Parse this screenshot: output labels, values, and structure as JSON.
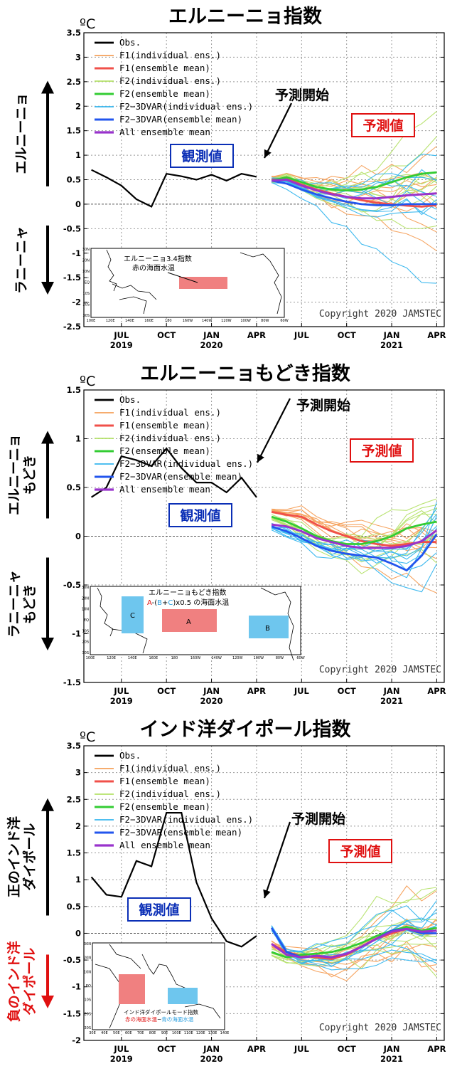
{
  "copyright": "Copyright 2020 JAMSTEC",
  "unit": "ºC",
  "legend": [
    {
      "name": "Obs.",
      "color": "#000000",
      "width": 2.2
    },
    {
      "name": "F1(individual ens.)",
      "color": "#f5a05a",
      "width": 1.2
    },
    {
      "name": "F1(ensemble mean)",
      "color": "#f0504a",
      "width": 2.4
    },
    {
      "name": "F2(individual ens.)",
      "color": "#b5e26a",
      "width": 1.2
    },
    {
      "name": "F2(ensemble mean)",
      "color": "#33cc33",
      "width": 2.4
    },
    {
      "name": "F2−3DVAR(individual ens.)",
      "color": "#36b6ee",
      "width": 1.2
    },
    {
      "name": "F2−3DVAR(ensemble mean)",
      "color": "#2255ee",
      "width": 2.4
    },
    {
      "name": "All ensemble mean",
      "color": "#9933cc",
      "width": 2.6
    }
  ],
  "x_ticks": [
    {
      "month": "JUL",
      "year": "2019"
    },
    {
      "month": "OCT",
      "year": ""
    },
    {
      "month": "JAN",
      "year": "2020"
    },
    {
      "month": "APR",
      "year": ""
    },
    {
      "month": "JUL",
      "year": ""
    },
    {
      "month": "OCT",
      "year": ""
    },
    {
      "month": "JAN",
      "year": "2021"
    },
    {
      "month": "APR",
      "year": ""
    }
  ],
  "chart_data": [
    {
      "type": "line",
      "title": "エルニーニョ指数",
      "ylim": [
        -2.5,
        3.5
      ],
      "yticks": [
        "3.5",
        "3",
        "2.5",
        "2",
        "1.5",
        "1",
        "0.5",
        "0",
        "-0.5",
        "-1",
        "-1.5",
        "-2",
        "-2.5"
      ],
      "forecast_start_label": "予測開始",
      "observed_label": "観測値",
      "forecast_label": "予測値",
      "up_label": "エルニーニョ",
      "down_label": "ラニーニャ",
      "obs": {
        "x": [
          "2019-05",
          "2019-06",
          "2019-07",
          "2019-08",
          "2019-09",
          "2019-10",
          "2019-11",
          "2019-12",
          "2020-01",
          "2020-02",
          "2020-03",
          "2020-04"
        ],
        "y": [
          0.7,
          0.55,
          0.38,
          0.1,
          -0.05,
          0.62,
          0.57,
          0.5,
          0.6,
          0.48,
          0.62,
          0.56
        ]
      },
      "forecast_x": [
        "2020-05",
        "2020-06",
        "2020-07",
        "2020-08",
        "2020-09",
        "2020-10",
        "2020-11",
        "2020-12",
        "2021-01",
        "2021-02",
        "2021-03",
        "2021-04"
      ],
      "f1_mean": [
        0.5,
        0.52,
        0.4,
        0.3,
        0.22,
        0.15,
        0.08,
        0.03,
        0.0,
        -0.03,
        -0.05,
        -0.02
      ],
      "f2_mean": [
        0.48,
        0.55,
        0.45,
        0.35,
        0.3,
        0.28,
        0.3,
        0.35,
        0.45,
        0.55,
        0.62,
        0.65
      ],
      "f2_3dvar_mean": [
        0.48,
        0.42,
        0.3,
        0.2,
        0.12,
        0.05,
        0.0,
        -0.02,
        -0.02,
        0.0,
        0.0,
        0.0
      ],
      "all_mean": [
        0.48,
        0.5,
        0.38,
        0.28,
        0.2,
        0.15,
        0.12,
        0.12,
        0.15,
        0.18,
        0.2,
        0.22
      ],
      "inset_title": "エルニーニョ3.4指数",
      "inset_subtitle": "赤の海面水温",
      "inset_lon_labels": [
        "100E",
        "120E",
        "140E",
        "160E",
        "180",
        "160W",
        "140W",
        "120W",
        "100W",
        "80W",
        "60W"
      ],
      "inset_lat_labels": [
        "30N",
        "20N",
        "10N",
        "EQ",
        "10S",
        "20S",
        "30S"
      ]
    },
    {
      "type": "line",
      "title": "エルニーニョもどき指数",
      "ylim": [
        -1.5,
        1.5
      ],
      "yticks": [
        "1.5",
        "1",
        "0.5",
        "0",
        "-0.5",
        "-1",
        "-1.5"
      ],
      "forecast_start_label": "予測開始",
      "observed_label": "観測値",
      "forecast_label": "予測値",
      "up_label": "エルニーニョ\nもどき",
      "down_label": "ラニーニャ\nもどき",
      "obs": {
        "x": [
          "2019-05",
          "2019-06",
          "2019-07",
          "2019-08",
          "2019-09",
          "2019-10",
          "2019-11",
          "2019-12",
          "2020-01",
          "2020-02",
          "2020-03",
          "2020-04"
        ],
        "y": [
          0.4,
          0.5,
          0.82,
          0.78,
          0.72,
          0.9,
          0.7,
          0.55,
          0.55,
          0.45,
          0.6,
          0.4
        ]
      },
      "forecast_x": [
        "2020-05",
        "2020-06",
        "2020-07",
        "2020-08",
        "2020-09",
        "2020-10",
        "2020-11",
        "2020-12",
        "2021-01",
        "2021-02",
        "2021-03",
        "2021-04"
      ],
      "f1_mean": [
        0.25,
        0.22,
        0.2,
        0.12,
        0.05,
        0.0,
        -0.05,
        -0.08,
        -0.1,
        -0.08,
        -0.06,
        -0.06
      ],
      "f2_mean": [
        0.2,
        0.15,
        0.08,
        0.0,
        -0.05,
        -0.08,
        -0.08,
        -0.05,
        0.0,
        0.08,
        0.12,
        0.15
      ],
      "f2_3dvar_mean": [
        0.1,
        0.05,
        -0.02,
        -0.1,
        -0.15,
        -0.18,
        -0.2,
        -0.22,
        -0.28,
        -0.35,
        -0.2,
        0.02
      ],
      "all_mean": [
        0.12,
        0.1,
        0.05,
        -0.02,
        -0.06,
        -0.1,
        -0.12,
        -0.12,
        -0.12,
        -0.1,
        -0.05,
        0.06
      ],
      "inset_title": "エルニーニョもどき指数",
      "inset_formula": [
        "A",
        "-(",
        "B",
        "+",
        "C",
        ")x0.5 の海面水温"
      ],
      "inset_lon_labels": [
        "100E",
        "120E",
        "140E",
        "160E",
        "180",
        "160W",
        "140W",
        "120W",
        "100W",
        "80W",
        "60W"
      ],
      "inset_lat_labels": [
        "30N",
        "20N",
        "10N",
        "EQ",
        "10S",
        "20S",
        "30S"
      ],
      "inset_boxes": [
        "A",
        "B",
        "C"
      ]
    },
    {
      "type": "line",
      "title": "インド洋ダイポール指数",
      "ylim": [
        -2,
        3.5
      ],
      "yticks": [
        "3.5",
        "3",
        "2.5",
        "2",
        "1.5",
        "1",
        "0.5",
        "0",
        "-0.5",
        "-1",
        "-1.5",
        "-2"
      ],
      "forecast_start_label": "予測開始",
      "observed_label": "観測値",
      "forecast_label": "予測値",
      "up_label": "正のインド洋\nダイポール",
      "down_label": "負のインド洋\nダイポール",
      "obs": {
        "x": [
          "2019-05",
          "2019-06",
          "2019-07",
          "2019-08",
          "2019-09",
          "2019-10",
          "2019-11",
          "2019-12",
          "2020-01",
          "2020-02",
          "2020-03",
          "2020-04"
        ],
        "y": [
          1.05,
          0.72,
          0.68,
          1.35,
          1.25,
          2.25,
          2.25,
          0.95,
          0.28,
          -0.15,
          -0.25,
          -0.05
        ]
      },
      "forecast_x": [
        "2020-05",
        "2020-06",
        "2020-07",
        "2020-08",
        "2020-09",
        "2020-10",
        "2020-11",
        "2020-12",
        "2021-01",
        "2021-02",
        "2021-03",
        "2021-04"
      ],
      "f1_mean": [
        -0.2,
        -0.35,
        -0.42,
        -0.45,
        -0.48,
        -0.4,
        -0.25,
        -0.1,
        0.0,
        0.08,
        0.02,
        0.05
      ],
      "f2_mean": [
        -0.35,
        -0.45,
        -0.4,
        -0.38,
        -0.35,
        -0.28,
        -0.18,
        -0.05,
        0.05,
        0.12,
        0.05,
        0.1
      ],
      "f2_3dvar_mean": [
        0.1,
        -0.35,
        -0.45,
        -0.42,
        -0.45,
        -0.38,
        -0.25,
        -0.1,
        0.05,
        0.08,
        0.0,
        0.0
      ],
      "all_mean": [
        -0.2,
        -0.4,
        -0.45,
        -0.42,
        -0.45,
        -0.38,
        -0.25,
        -0.1,
        0.03,
        0.08,
        0.03,
        0.05
      ],
      "inset_title": "インド洋ダイポールモード指数",
      "inset_sub_red": "赤の海面水温",
      "inset_sub_mid": "−",
      "inset_sub_blue": "青の海面水温",
      "inset_lon_labels": [
        "30E",
        "40E",
        "50E",
        "60E",
        "70E",
        "80E",
        "90E",
        "100E",
        "110E",
        "120E",
        "130E",
        "140E"
      ],
      "inset_lat_labels": [
        "30N",
        "20N",
        "10N",
        "EQ",
        "10S",
        "20S",
        "30S"
      ]
    }
  ]
}
